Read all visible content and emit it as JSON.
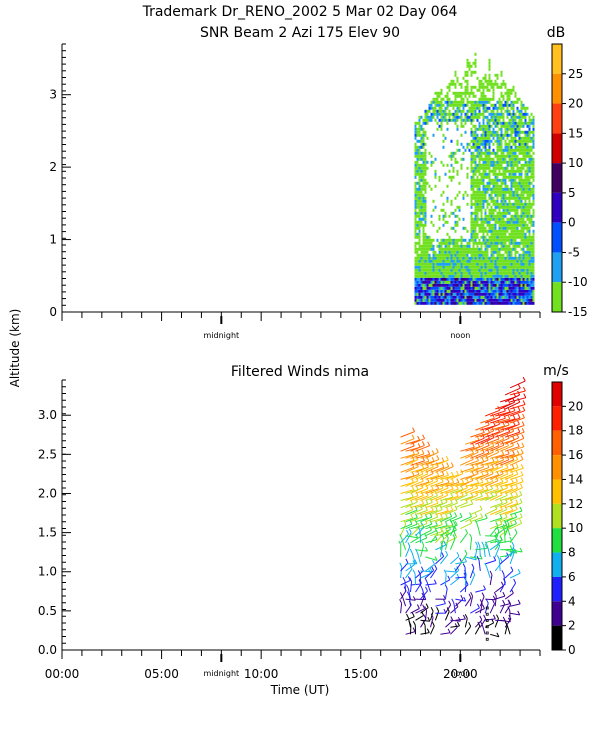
{
  "header": {
    "line1": "Trademark Dr_RENO_2002   5 Mar 02 Day 064",
    "line2": "SNR Beam 2 Azi 175 Elev 90"
  },
  "y_axis_label": "Altitude (km)",
  "chart_data": [
    {
      "type": "heatmap",
      "title": "SNR Beam 2 Azi 175 Elev 90",
      "ylim": [
        0,
        3.7
      ],
      "y_ticks": [
        0,
        1,
        2,
        3
      ],
      "y_tick_labels": [
        "0",
        "1",
        "2",
        "3"
      ],
      "xlim": [
        0,
        24
      ],
      "x_markers": [
        {
          "x": 8,
          "label": "midnight"
        },
        {
          "x": 20,
          "label": "noon"
        }
      ],
      "data_start_hour": 17.7,
      "data_end_hour": 23.7,
      "data_top_km": 3.6,
      "colorbar": {
        "unit": "dB",
        "range": [
          -15,
          30
        ],
        "tick_values": [
          25,
          20,
          15,
          10,
          5,
          0,
          -5,
          -10,
          -15
        ],
        "tick_labels": [
          "25",
          "20",
          "15",
          "10",
          "5",
          "0",
          "-5",
          "-10",
          "-15"
        ],
        "bands": [
          {
            "from": 25,
            "to": 30,
            "color": "#ffc020"
          },
          {
            "from": 20,
            "to": 25,
            "color": "#ff9000"
          },
          {
            "from": 15,
            "to": 20,
            "color": "#ff4010"
          },
          {
            "from": 10,
            "to": 15,
            "color": "#d00000"
          },
          {
            "from": 5,
            "to": 10,
            "color": "#400060"
          },
          {
            "from": 0,
            "to": 5,
            "color": "#3000c0"
          },
          {
            "from": -5,
            "to": 0,
            "color": "#0050ff"
          },
          {
            "from": -10,
            "to": -5,
            "color": "#20a0f0"
          },
          {
            "from": -15,
            "to": -10,
            "color": "#70e020"
          }
        ]
      }
    },
    {
      "type": "scatter",
      "title": "Filtered Winds nima",
      "ylim": [
        0,
        3.45
      ],
      "y_ticks": [
        0,
        0.5,
        1,
        1.5,
        2,
        2.5,
        3
      ],
      "y_tick_labels": [
        "0.0",
        "0.5",
        "1.0",
        "1.5",
        "2.0",
        "2.5",
        "3.0"
      ],
      "xlim": [
        0,
        24
      ],
      "x_ticks": [
        0,
        5,
        10,
        15,
        20
      ],
      "x_tick_labels": [
        "00:00",
        "05:00",
        "10:00",
        "15:00",
        "20:00"
      ],
      "xlabel": "Time (UT)",
      "x_markers": [
        {
          "x": 8,
          "label": "midnight"
        },
        {
          "x": 20,
          "label": "noon"
        }
      ],
      "data_start_hour": 17,
      "data_end_hour": 22.6,
      "colorbar": {
        "unit": "m/s",
        "range": [
          0,
          22
        ],
        "tick_values": [
          20,
          18,
          16,
          14,
          12,
          10,
          8,
          6,
          4,
          2,
          0
        ],
        "tick_labels": [
          "20",
          "18",
          "16",
          "14",
          "12",
          "10",
          "8",
          "6",
          "4",
          "2",
          "0"
        ],
        "bands": [
          {
            "from": 20,
            "to": 22,
            "color": "#e00000"
          },
          {
            "from": 18,
            "to": 20,
            "color": "#ff2000"
          },
          {
            "from": 16,
            "to": 18,
            "color": "#ff6000"
          },
          {
            "from": 14,
            "to": 16,
            "color": "#ff9000"
          },
          {
            "from": 12,
            "to": 14,
            "color": "#ffc000"
          },
          {
            "from": 10,
            "to": 12,
            "color": "#b0e020"
          },
          {
            "from": 8,
            "to": 10,
            "color": "#20e040"
          },
          {
            "from": 6,
            "to": 8,
            "color": "#10b0f0"
          },
          {
            "from": 4,
            "to": 6,
            "color": "#2020ff"
          },
          {
            "from": 2,
            "to": 4,
            "color": "#400090"
          },
          {
            "from": 0,
            "to": 2,
            "color": "#000000"
          }
        ]
      }
    }
  ]
}
